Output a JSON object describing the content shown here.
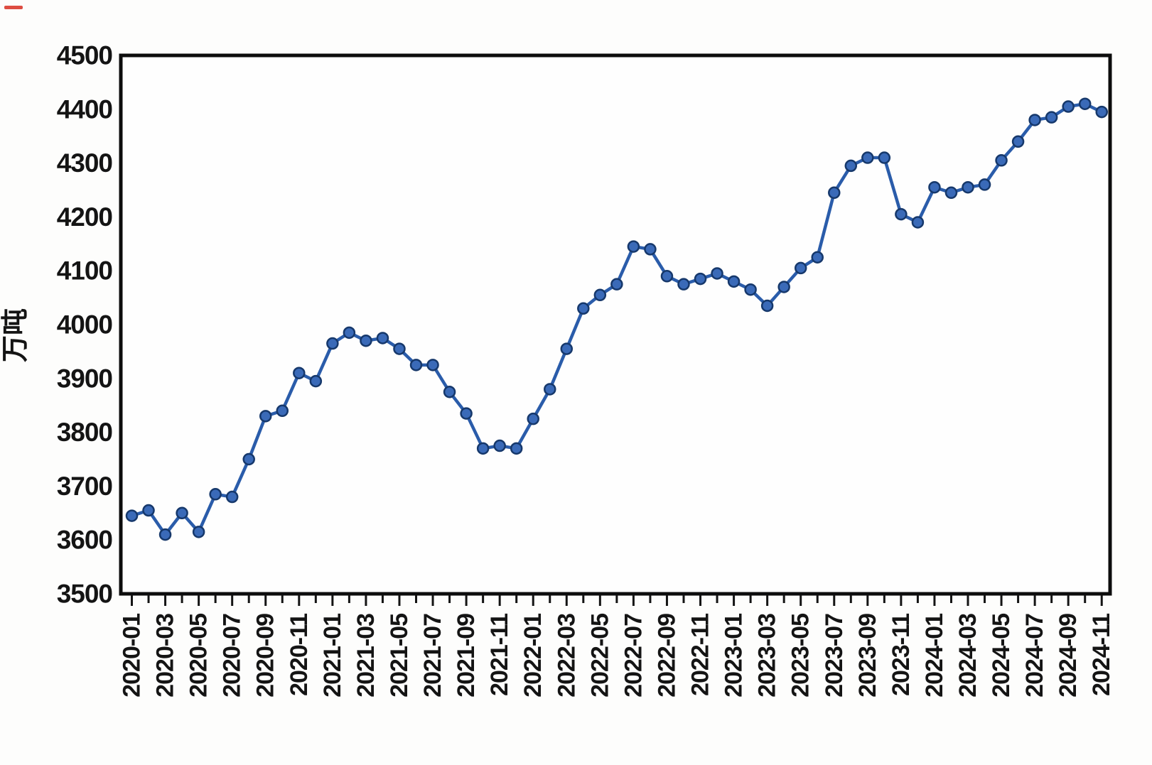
{
  "chart_data": {
    "type": "line",
    "title": "",
    "xlabel": "",
    "ylabel": "万吨",
    "ylim": [
      3500,
      4500
    ],
    "ytick_step": 100,
    "ytick_labels": [
      "4500",
      "4400",
      "4300",
      "4200",
      "4100",
      "4000",
      "3900",
      "3800",
      "3700",
      "3600",
      "3500"
    ],
    "x": [
      "2020-01",
      "2020-02",
      "2020-03",
      "2020-04",
      "2020-05",
      "2020-06",
      "2020-07",
      "2020-08",
      "2020-09",
      "2020-10",
      "2020-11",
      "2020-12",
      "2021-01",
      "2021-02",
      "2021-03",
      "2021-04",
      "2021-05",
      "2021-06",
      "2021-07",
      "2021-08",
      "2021-09",
      "2021-10",
      "2021-11",
      "2021-12",
      "2022-01",
      "2022-02",
      "2022-03",
      "2022-04",
      "2022-05",
      "2022-06",
      "2022-07",
      "2022-08",
      "2022-09",
      "2022-10",
      "2022-11",
      "2022-12",
      "2023-01",
      "2023-02",
      "2023-03",
      "2023-04",
      "2023-05",
      "2023-06",
      "2023-07",
      "2023-08",
      "2023-09",
      "2023-10",
      "2023-11",
      "2023-12",
      "2024-01",
      "2024-02",
      "2024-03",
      "2024-04",
      "2024-05",
      "2024-06",
      "2024-07",
      "2024-08",
      "2024-09",
      "2024-10",
      "2024-11"
    ],
    "values": [
      3645,
      3655,
      3610,
      3650,
      3615,
      3685,
      3680,
      3750,
      3830,
      3840,
      3910,
      3895,
      3965,
      3985,
      3970,
      3975,
      3955,
      3925,
      3925,
      3875,
      3835,
      3770,
      3775,
      3770,
      3825,
      3880,
      3955,
      4030,
      4055,
      4075,
      4145,
      4140,
      4090,
      4075,
      4085,
      4095,
      4080,
      4065,
      4035,
      4070,
      4105,
      4125,
      4245,
      4295,
      4310,
      4310,
      4205,
      4190,
      4255,
      4245,
      4255,
      4260,
      4305,
      4340,
      4380,
      4385,
      4405,
      4410,
      4395
    ],
    "xtick_labels": [
      "2020-01",
      "2020-03",
      "2020-05",
      "2020-07",
      "2020-09",
      "2020-11",
      "2021-01",
      "2021-03",
      "2021-05",
      "2021-07",
      "2021-09",
      "2021-11",
      "2022-01",
      "2022-03",
      "2022-05",
      "2022-07",
      "2022-09",
      "2022-11",
      "2023-01",
      "2023-03",
      "2023-05",
      "2023-07",
      "2023-09",
      "2023-11",
      "2024-01",
      "2024-03",
      "2024-05",
      "2024-07",
      "2024-09",
      "2024-11"
    ],
    "xtick_label_every_n_months": 2,
    "grid": false,
    "legend": null,
    "colors": {
      "line": "#2a5caa",
      "marker_fill": "#3a6ab8",
      "marker_edge": "#16386b",
      "frame": "#0d0d0d",
      "tick": "#141414",
      "plot_background": "#fefefe"
    }
  }
}
